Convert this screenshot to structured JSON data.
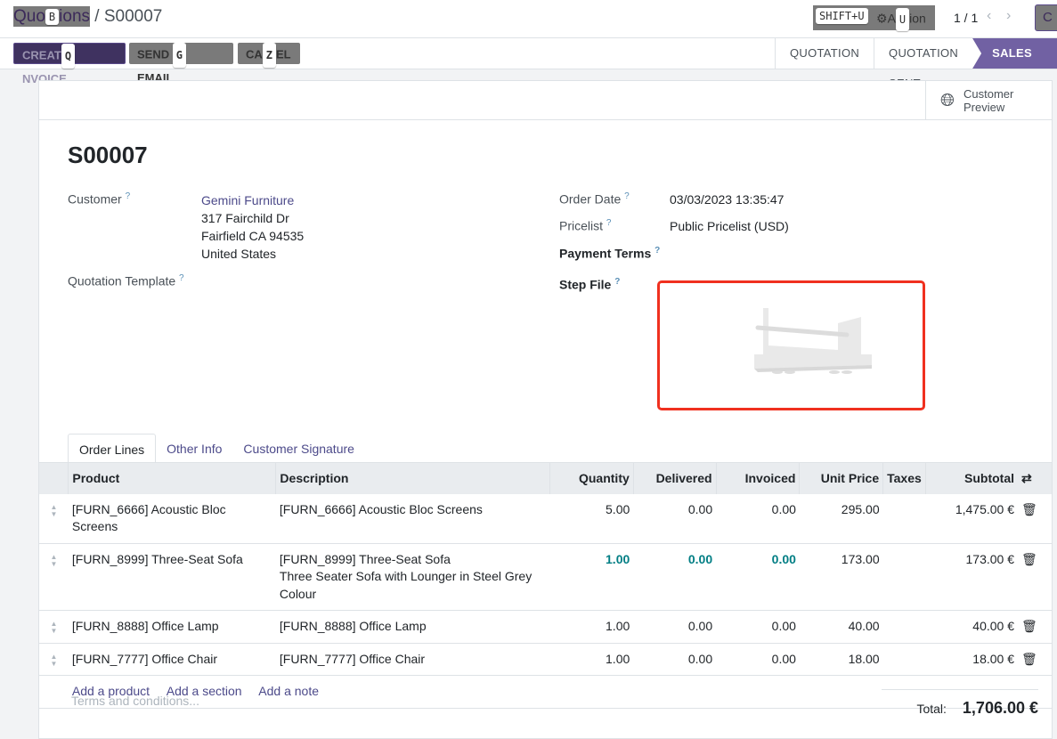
{
  "breadcrumb": {
    "parent": "Quotations",
    "parent_visible_a": "Quo",
    "parent_visible_b": "ions",
    "parent_key": "B",
    "current": "S00007"
  },
  "header": {
    "shift_key": "SHIFT+U",
    "action_label_a": "A",
    "action_label_b": "ion",
    "action_key": "U",
    "pager": "1 / 1",
    "create_partial": "C"
  },
  "buttons": [
    {
      "label_a": "CREAT",
      "label_b": "NVOICE",
      "key": "Q"
    },
    {
      "label_a": "SEND",
      "label_b": "EMAIL",
      "key": "G"
    },
    {
      "label_a": "CA",
      "label_b": "EL",
      "key": "Z"
    }
  ],
  "status_steps": [
    "QUOTATION",
    "QUOTATION SENT",
    "SALES ORDER"
  ],
  "preview": {
    "label1": "Customer",
    "label2": "Preview"
  },
  "record": {
    "name": "S00007",
    "customer_label": "Customer",
    "customer": "Gemini Furniture",
    "address": [
      "317 Fairchild Dr",
      "Fairfield CA 94535",
      "United States"
    ],
    "template_label": "Quotation Template",
    "order_date_label": "Order Date",
    "order_date": "03/03/2023 13:35:47",
    "pricelist_label": "Pricelist",
    "pricelist": "Public Pricelist (USD)",
    "payment_terms_label": "Payment Terms",
    "step_file_label": "Step File",
    "help": "?"
  },
  "tabs": [
    "Order Lines",
    "Other Info",
    "Customer Signature"
  ],
  "columns": [
    "Product",
    "Description",
    "Quantity",
    "Delivered",
    "Invoiced",
    "Unit Price",
    "Taxes",
    "Subtotal"
  ],
  "lines": [
    {
      "product": "[FURN_6666] Acoustic Bloc Screens",
      "desc": [
        "[FURN_6666] Acoustic Bloc Screens"
      ],
      "qty": "5.00",
      "delivered": "0.00",
      "invoiced": "0.00",
      "price": "295.00",
      "taxes": "",
      "subtotal": "1,475.00 €"
    },
    {
      "product": "[FURN_8999] Three-Seat Sofa",
      "desc": [
        "[FURN_8999] Three-Seat Sofa",
        "Three Seater Sofa with Lounger in Steel Grey",
        "Colour"
      ],
      "qty": "1.00",
      "delivered": "0.00",
      "invoiced": "0.00",
      "price": "173.00",
      "taxes": "",
      "subtotal": "173.00 €"
    },
    {
      "product": "[FURN_8888] Office Lamp",
      "desc": [
        "[FURN_8888] Office Lamp"
      ],
      "qty": "1.00",
      "delivered": "0.00",
      "invoiced": "0.00",
      "price": "40.00",
      "taxes": "",
      "subtotal": "40.00 €"
    },
    {
      "product": "[FURN_7777] Office Chair",
      "desc": [
        "[FURN_7777] Office Chair"
      ],
      "qty": "1.00",
      "delivered": "0.00",
      "invoiced": "0.00",
      "price": "18.00",
      "taxes": "",
      "subtotal": "18.00 €"
    }
  ],
  "add_links": [
    "Add a product",
    "Add a section",
    "Add a note"
  ],
  "terms_placeholder": "Terms and conditions...",
  "total": {
    "label": "Total:",
    "value": "1,706.00 €"
  }
}
